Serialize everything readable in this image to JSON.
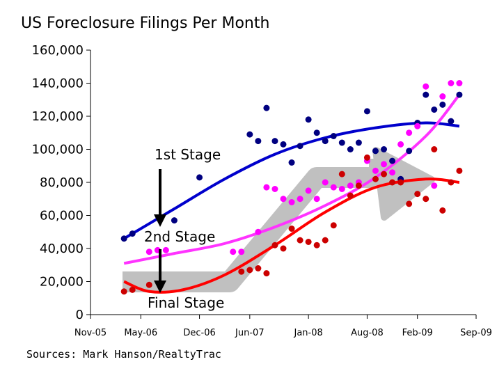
{
  "chart_data": {
    "type": "scatter",
    "title": "US Foreclosure Filings Per Month",
    "source": "Sources: Mark Hanson/RealtyTrac",
    "xlabel": "",
    "ylabel": "",
    "ylim": [
      0,
      160000
    ],
    "y_ticks": [
      "0",
      "20,000",
      "40,000",
      "60,000",
      "80,000",
      "100,000",
      "120,000",
      "140,000",
      "160,000"
    ],
    "y_tick_values": [
      0,
      20000,
      40000,
      60000,
      80000,
      100000,
      120000,
      140000,
      160000
    ],
    "x_ticks": [
      "Nov-05",
      "May-06",
      "Dec-06",
      "Jun-07",
      "Jan-08",
      "Aug-08",
      "Feb-09",
      "Sep-09"
    ],
    "x_tick_values": [
      "2005-11",
      "2006-05",
      "2006-12",
      "2007-06",
      "2008-01",
      "2008-08",
      "2009-02",
      "2009-09"
    ],
    "grid": false,
    "legend": "none",
    "annotations": [
      "1st Stage",
      "2nd Stage",
      "Final Stage"
    ],
    "series": [
      {
        "color": "#000080",
        "trend_color": "#0000cc",
        "points": [
          [
            "2006-03",
            46000
          ],
          [
            "2006-04",
            49000
          ],
          [
            "2006-09",
            57000
          ],
          [
            "2006-12",
            83000
          ],
          [
            "2007-06",
            109000
          ],
          [
            "2007-07",
            105000
          ],
          [
            "2007-08",
            125000
          ],
          [
            "2007-09",
            105000
          ],
          [
            "2007-10",
            103000
          ],
          [
            "2007-11",
            92000
          ],
          [
            "2007-12",
            102000
          ],
          [
            "2008-01",
            118000
          ],
          [
            "2008-02",
            110000
          ],
          [
            "2008-03",
            105000
          ],
          [
            "2008-04",
            108000
          ],
          [
            "2008-05",
            104000
          ],
          [
            "2008-06",
            100000
          ],
          [
            "2008-07",
            104000
          ],
          [
            "2008-08",
            123000
          ],
          [
            "2008-09",
            99000
          ],
          [
            "2008-10",
            100000
          ],
          [
            "2008-11",
            93000
          ],
          [
            "2008-12",
            82000
          ],
          [
            "2009-01",
            99000
          ],
          [
            "2009-02",
            116000
          ],
          [
            "2009-03",
            133000
          ],
          [
            "2009-04",
            124000
          ],
          [
            "2009-05",
            127000
          ],
          [
            "2009-06",
            117000
          ],
          [
            "2009-07",
            133000
          ]
        ],
        "trend": [
          [
            "2006-03",
            46000
          ],
          [
            "2006-09",
            64000
          ],
          [
            "2007-03",
            82000
          ],
          [
            "2007-09",
            97000
          ],
          [
            "2008-03",
            107000
          ],
          [
            "2008-09",
            113000
          ],
          [
            "2009-03",
            116000
          ],
          [
            "2009-07",
            114000
          ]
        ]
      },
      {
        "color": "#ff00ff",
        "trend_color": "#ff33ff",
        "points": [
          [
            "2006-06",
            38000
          ],
          [
            "2006-07",
            39000
          ],
          [
            "2006-08",
            39000
          ],
          [
            "2007-04",
            38000
          ],
          [
            "2007-05",
            38000
          ],
          [
            "2007-07",
            50000
          ],
          [
            "2007-08",
            77000
          ],
          [
            "2007-09",
            76000
          ],
          [
            "2007-10",
            70000
          ],
          [
            "2007-11",
            68000
          ],
          [
            "2007-12",
            70000
          ],
          [
            "2008-01",
            75000
          ],
          [
            "2008-02",
            70000
          ],
          [
            "2008-03",
            80000
          ],
          [
            "2008-04",
            77000
          ],
          [
            "2008-05",
            76000
          ],
          [
            "2008-06",
            78000
          ],
          [
            "2008-07",
            80000
          ],
          [
            "2008-08",
            93000
          ],
          [
            "2008-09",
            87000
          ],
          [
            "2008-10",
            91000
          ],
          [
            "2008-11",
            86000
          ],
          [
            "2008-12",
            103000
          ],
          [
            "2009-01",
            110000
          ],
          [
            "2009-02",
            114000
          ],
          [
            "2009-03",
            138000
          ],
          [
            "2009-04",
            78000
          ],
          [
            "2009-05",
            132000
          ],
          [
            "2009-06",
            140000
          ],
          [
            "2009-07",
            140000
          ]
        ],
        "trend": [
          [
            "2006-03",
            31000
          ],
          [
            "2006-09",
            37000
          ],
          [
            "2007-03",
            43000
          ],
          [
            "2007-09",
            53000
          ],
          [
            "2008-03",
            66000
          ],
          [
            "2008-09",
            83000
          ],
          [
            "2009-03",
            108000
          ],
          [
            "2009-07",
            133000
          ]
        ]
      },
      {
        "color": "#cc0000",
        "trend_color": "#ff0000",
        "points": [
          [
            "2006-03",
            14000
          ],
          [
            "2006-04",
            15000
          ],
          [
            "2006-06",
            18000
          ],
          [
            "2007-05",
            26000
          ],
          [
            "2007-06",
            27000
          ],
          [
            "2007-07",
            28000
          ],
          [
            "2007-08",
            25000
          ],
          [
            "2007-09",
            42000
          ],
          [
            "2007-10",
            40000
          ],
          [
            "2007-11",
            52000
          ],
          [
            "2007-12",
            45000
          ],
          [
            "2008-01",
            44000
          ],
          [
            "2008-02",
            42000
          ],
          [
            "2008-03",
            45000
          ],
          [
            "2008-04",
            54000
          ],
          [
            "2008-05",
            85000
          ],
          [
            "2008-06",
            72000
          ],
          [
            "2008-07",
            78000
          ],
          [
            "2008-08",
            95000
          ],
          [
            "2008-09",
            82000
          ],
          [
            "2008-10",
            85000
          ],
          [
            "2008-11",
            80000
          ],
          [
            "2008-12",
            80000
          ],
          [
            "2009-01",
            67000
          ],
          [
            "2009-02",
            73000
          ],
          [
            "2009-03",
            70000
          ],
          [
            "2009-04",
            100000
          ],
          [
            "2009-05",
            63000
          ],
          [
            "2009-06",
            80000
          ],
          [
            "2009-07",
            87000
          ]
        ],
        "trend": [
          [
            "2006-03",
            20000
          ],
          [
            "2006-06",
            14000
          ],
          [
            "2006-10",
            15000
          ],
          [
            "2007-03",
            24000
          ],
          [
            "2007-09",
            42000
          ],
          [
            "2008-03",
            62000
          ],
          [
            "2008-09",
            77000
          ],
          [
            "2009-03",
            82000
          ],
          [
            "2009-07",
            80000
          ]
        ]
      }
    ]
  }
}
